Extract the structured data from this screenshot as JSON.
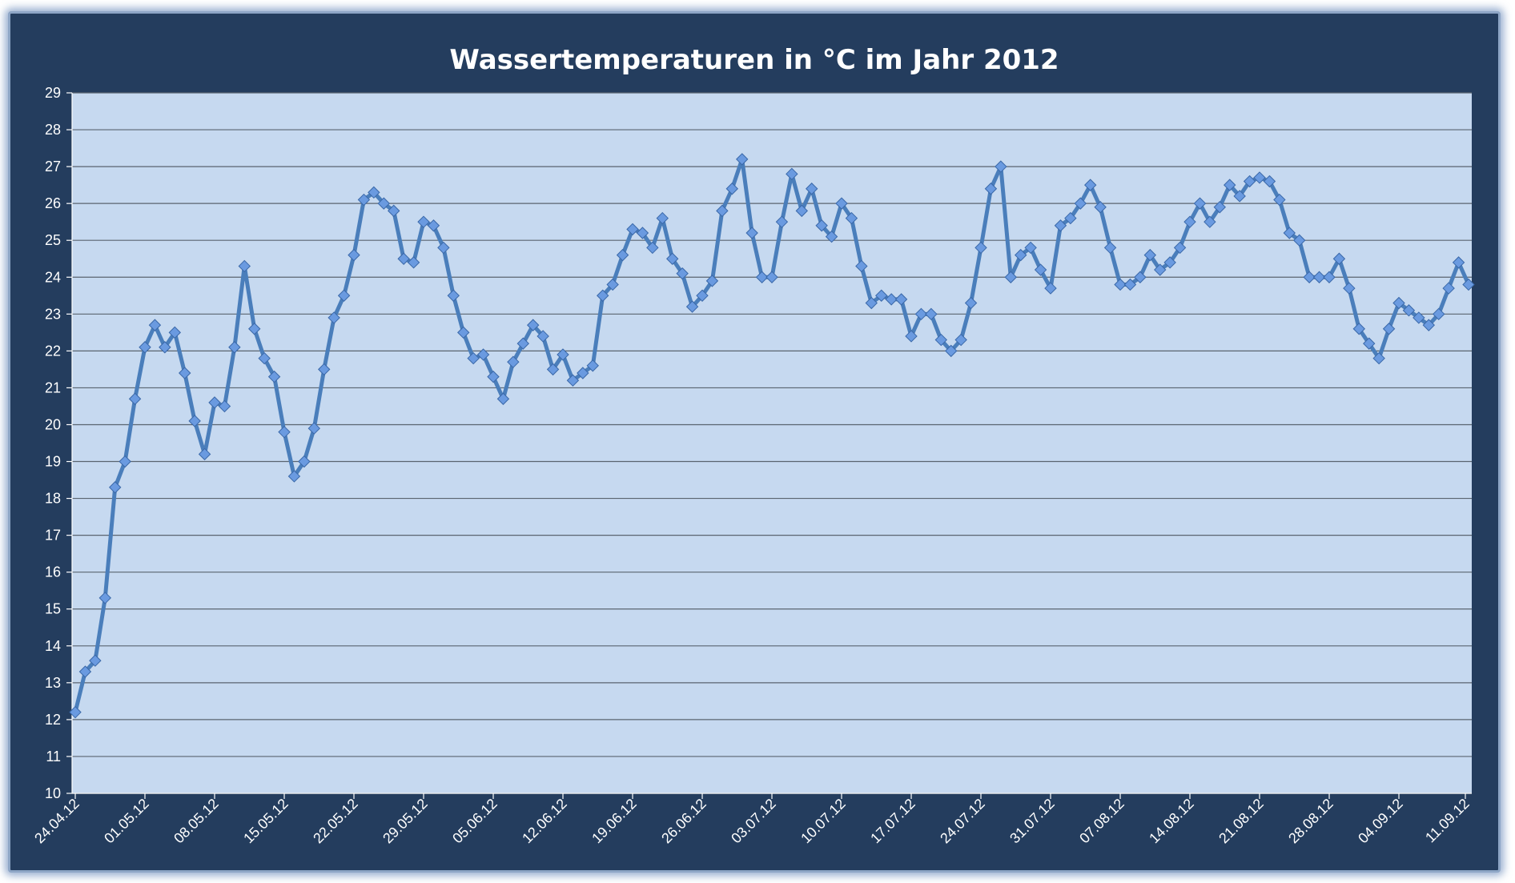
{
  "chart_data": {
    "type": "line",
    "title": "Wassertemperaturen in °C im Jahr 2012",
    "xlabel": "",
    "ylabel": "",
    "start_date": "24.04.12",
    "x_tick_labels": [
      "24.04.12",
      "01.05.12",
      "08.05.12",
      "15.05.12",
      "22.05.12",
      "29.05.12",
      "05.06.12",
      "12.06.12",
      "19.06.12",
      "26.06.12",
      "03.07.12",
      "10.07.12",
      "17.07.12",
      "24.07.12",
      "31.07.12",
      "07.08.12",
      "14.08.12",
      "21.08.12",
      "28.08.12",
      "04.09.12",
      "11.09.12"
    ],
    "ylim": [
      10,
      29
    ],
    "y_ticks": [
      "10",
      "11",
      "12",
      "13",
      "14",
      "15",
      "16",
      "17",
      "18",
      "19",
      "20",
      "21",
      "22",
      "23",
      "24",
      "25",
      "26",
      "27",
      "28",
      "29"
    ],
    "grid": true,
    "legend": "none",
    "colors": {
      "frame_bg": "#243d5e",
      "plot_bg": "#c6d9f0",
      "line": "#4a7ebb",
      "marker": "#6a9ae0"
    },
    "series": [
      {
        "values": [
          12.2,
          13.3,
          13.6,
          15.3,
          18.3,
          19.0,
          20.7,
          22.1,
          22.7,
          22.1,
          22.5,
          21.4,
          20.1,
          19.2,
          20.6,
          20.5,
          22.1,
          24.3,
          22.6,
          21.8,
          21.3,
          19.8,
          18.6,
          19.0,
          19.9,
          21.5,
          22.9,
          23.5,
          24.6,
          26.1,
          26.3,
          26.0,
          25.8,
          24.5,
          24.4,
          25.5,
          25.4,
          24.8,
          23.5,
          22.5,
          21.8,
          21.9,
          21.3,
          20.7,
          21.7,
          22.2,
          22.7,
          22.4,
          21.5,
          21.9,
          21.2,
          21.4,
          21.6,
          23.5,
          23.8,
          24.6,
          25.3,
          25.2,
          24.8,
          25.6,
          24.5,
          24.1,
          23.2,
          23.5,
          23.9,
          25.8,
          26.4,
          27.2,
          25.2,
          24.0,
          24.0,
          25.5,
          26.8,
          25.8,
          26.4,
          25.4,
          25.1,
          26.0,
          25.6,
          24.3,
          23.3,
          23.5,
          23.4,
          23.4,
          22.4,
          23.0,
          23.0,
          22.3,
          22.0,
          22.3,
          23.3,
          24.8,
          26.4,
          27.0,
          24.0,
          24.6,
          24.8,
          24.2,
          23.7,
          25.4,
          25.6,
          26.0,
          26.5,
          25.9,
          24.8,
          23.8,
          23.8,
          24.0,
          24.6,
          24.2,
          24.4,
          24.8,
          25.5,
          26.0,
          25.5,
          25.9,
          26.5,
          26.2,
          26.6,
          26.7,
          26.6,
          26.1,
          25.2,
          25.0,
          24.0,
          24.0,
          24.0,
          24.5,
          23.7,
          22.6,
          22.2,
          21.8,
          22.6,
          23.3,
          23.1,
          22.9,
          22.7,
          23.0,
          23.7,
          24.4,
          23.8
        ]
      }
    ]
  }
}
